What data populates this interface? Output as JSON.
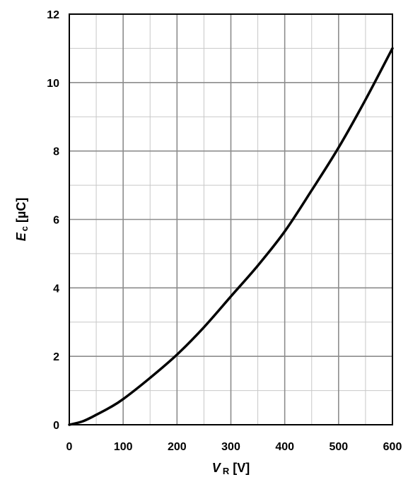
{
  "chart_data": {
    "type": "line",
    "xlabel": {
      "symbol": "V",
      "subscript": "R",
      "unit": " [V]"
    },
    "ylabel": {
      "symbol": "E",
      "subscript": "c",
      "unit": " [µC]"
    },
    "xlim": [
      0,
      600
    ],
    "ylim": [
      0,
      12
    ],
    "x_ticks": [
      0,
      100,
      200,
      300,
      400,
      500,
      600
    ],
    "y_ticks": [
      0,
      2,
      4,
      6,
      8,
      10,
      12
    ],
    "x_minor_step": 50,
    "y_minor_step": 1,
    "grid": true,
    "series": [
      {
        "x": [
          0,
          25,
          50,
          75,
          100,
          150,
          200,
          250,
          300,
          350,
          400,
          450,
          500,
          550,
          600
        ],
        "values": [
          0,
          0.1,
          0.29,
          0.5,
          0.75,
          1.37,
          2.05,
          2.85,
          3.75,
          4.65,
          5.65,
          6.85,
          8.1,
          9.5,
          11.0
        ],
        "color": "#000000"
      }
    ]
  }
}
